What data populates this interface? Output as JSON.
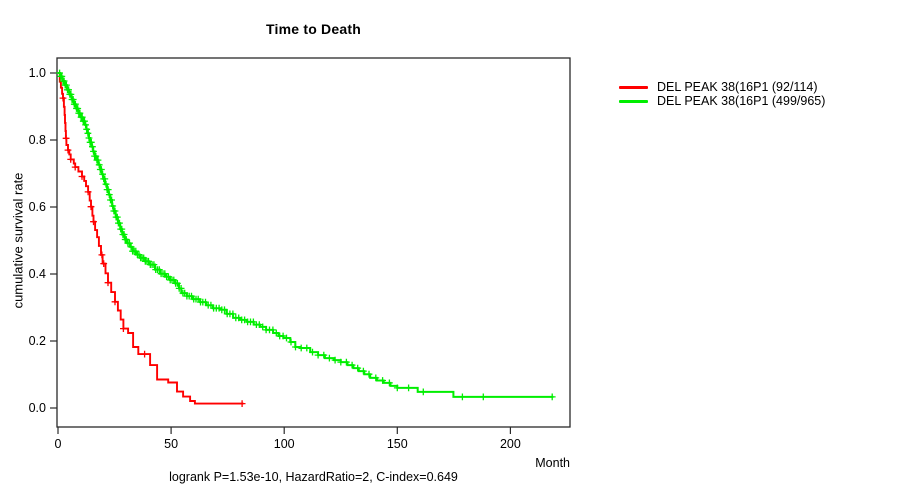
{
  "title": "Time to Death",
  "y_axis": {
    "label": "cumulative survival rate",
    "tick_labels": [
      "0.0",
      "0.2",
      "0.4",
      "0.6",
      "0.8",
      "1.0"
    ]
  },
  "x_axis": {
    "label": "Month",
    "tick_labels": [
      "0",
      "50",
      "100",
      "150",
      "200"
    ]
  },
  "footnote": "logrank P=1.53e-10, HazardRatio=2, C-index=0.649",
  "legend": [
    {
      "label": "DEL PEAK 38(16P1 (92/114)",
      "color": "#ff0000"
    },
    {
      "label": "DEL PEAK 38(16P1 (499/965)",
      "color": "#00ee00"
    }
  ],
  "chart_data": {
    "type": "line",
    "subtype": "kaplan-meier-step",
    "title": "Time to Death",
    "xlabel": "Month",
    "ylabel": "cumulative survival rate",
    "xlim": [
      0,
      226
    ],
    "ylim": [
      0.0,
      1.0
    ],
    "x_ticks": [
      0,
      50,
      100,
      150,
      200
    ],
    "y_ticks": [
      0.0,
      0.2,
      0.4,
      0.6,
      0.8,
      1.0
    ],
    "grid": false,
    "legend_position": "right-outside",
    "annotation": "logrank P=1.53e-10, HazardRatio=2, C-index=0.649",
    "series": [
      {
        "name": "DEL PEAK 38(16P1 (92/114)",
        "color": "#ff0000",
        "line_width": 1.9,
        "end_time": 82,
        "steps": [
          [
            0,
            1.0
          ],
          [
            0.8,
            0.974
          ],
          [
            1.3,
            0.956
          ],
          [
            1.8,
            0.938
          ],
          [
            2.2,
            0.925
          ],
          [
            2.6,
            0.899
          ],
          [
            2.9,
            0.875
          ],
          [
            3.1,
            0.851
          ],
          [
            3.3,
            0.827
          ],
          [
            3.5,
            0.805
          ],
          [
            3.7,
            0.785
          ],
          [
            4.4,
            0.77
          ],
          [
            5,
            0.757
          ],
          [
            5.6,
            0.742
          ],
          [
            7,
            0.73
          ],
          [
            7.6,
            0.719
          ],
          [
            9,
            0.706
          ],
          [
            10.6,
            0.691
          ],
          [
            11.6,
            0.678
          ],
          [
            12.4,
            0.662
          ],
          [
            13.3,
            0.645
          ],
          [
            14,
            0.619
          ],
          [
            14.6,
            0.601
          ],
          [
            15.2,
            0.574
          ],
          [
            15.7,
            0.556
          ],
          [
            16.4,
            0.531
          ],
          [
            17.3,
            0.51
          ],
          [
            18.1,
            0.484
          ],
          [
            19,
            0.457
          ],
          [
            19.7,
            0.431
          ],
          [
            21,
            0.402
          ],
          [
            22.1,
            0.374
          ],
          [
            23.5,
            0.346
          ],
          [
            25.2,
            0.317
          ],
          [
            26.5,
            0.291
          ],
          [
            27.7,
            0.264
          ],
          [
            28.9,
            0.237
          ],
          [
            31,
            0.224
          ],
          [
            33.2,
            0.182
          ],
          [
            35.5,
            0.161
          ],
          [
            40.7,
            0.128
          ],
          [
            43.8,
            0.085
          ],
          [
            48.7,
            0.076
          ],
          [
            52.6,
            0.049
          ],
          [
            55.3,
            0.034
          ],
          [
            58.4,
            0.021
          ],
          [
            60.5,
            0.013
          ]
        ],
        "censor_times": [
          2.2,
          3.6,
          4.4,
          5.6,
          7.6,
          10.6,
          13.3,
          14.6,
          15.7,
          19.4,
          20.2,
          22.1,
          25.2,
          28.9,
          38.3,
          81.4
        ]
      },
      {
        "name": "DEL PEAK 38(16P1 (499/965)",
        "color": "#00ee00",
        "line_width": 2,
        "end_time": 219,
        "steps": [
          [
            0,
            1.0
          ],
          [
            1,
            0.99
          ],
          [
            2,
            0.976
          ],
          [
            3,
            0.964
          ],
          [
            4,
            0.95
          ],
          [
            5,
            0.936
          ],
          [
            6,
            0.921
          ],
          [
            7,
            0.907
          ],
          [
            8,
            0.894
          ],
          [
            9,
            0.88
          ],
          [
            10,
            0.868
          ],
          [
            11,
            0.856
          ],
          [
            12,
            0.845
          ],
          [
            12.6,
            0.832
          ],
          [
            13.2,
            0.82
          ],
          [
            13.7,
            0.806
          ],
          [
            14.2,
            0.793
          ],
          [
            14.8,
            0.78
          ],
          [
            15.5,
            0.766
          ],
          [
            16.2,
            0.752
          ],
          [
            17,
            0.74
          ],
          [
            17.8,
            0.726
          ],
          [
            18.6,
            0.712
          ],
          [
            19.3,
            0.698
          ],
          [
            20,
            0.684
          ],
          [
            20.8,
            0.668
          ],
          [
            21.7,
            0.652
          ],
          [
            22.4,
            0.637
          ],
          [
            23.1,
            0.621
          ],
          [
            23.9,
            0.603
          ],
          [
            24.6,
            0.588
          ],
          [
            25.5,
            0.57
          ],
          [
            26.5,
            0.552
          ],
          [
            27.5,
            0.534
          ],
          [
            28.4,
            0.518
          ],
          [
            29.5,
            0.503
          ],
          [
            30.7,
            0.492
          ],
          [
            31.9,
            0.481
          ],
          [
            33,
            0.468
          ],
          [
            34.5,
            0.458
          ],
          [
            36.2,
            0.448
          ],
          [
            38.5,
            0.438
          ],
          [
            40.3,
            0.428
          ],
          [
            42.9,
            0.413
          ],
          [
            45.1,
            0.401
          ],
          [
            47.3,
            0.392
          ],
          [
            49.5,
            0.382
          ],
          [
            51.8,
            0.372
          ],
          [
            53.5,
            0.357
          ],
          [
            54.5,
            0.343
          ],
          [
            57,
            0.334
          ],
          [
            59.5,
            0.325
          ],
          [
            62.8,
            0.316
          ],
          [
            65.5,
            0.307
          ],
          [
            68.5,
            0.298
          ],
          [
            71.7,
            0.293
          ],
          [
            74.5,
            0.281
          ],
          [
            77.4,
            0.269
          ],
          [
            80.5,
            0.263
          ],
          [
            83.6,
            0.257
          ],
          [
            86.5,
            0.249
          ],
          [
            89.4,
            0.242
          ],
          [
            92,
            0.233
          ],
          [
            95.1,
            0.224
          ],
          [
            97.5,
            0.215
          ],
          [
            99.6,
            0.209
          ],
          [
            102.7,
            0.197
          ],
          [
            104.9,
            0.182
          ],
          [
            107,
            0.179
          ],
          [
            111.5,
            0.167
          ],
          [
            115,
            0.158
          ],
          [
            118,
            0.149
          ],
          [
            122,
            0.143
          ],
          [
            125,
            0.137
          ],
          [
            128,
            0.128
          ],
          [
            130.6,
            0.119
          ],
          [
            133,
            0.11
          ],
          [
            135.4,
            0.101
          ],
          [
            138,
            0.09
          ],
          [
            141,
            0.082
          ],
          [
            144,
            0.075
          ],
          [
            147,
            0.066
          ],
          [
            150,
            0.06
          ],
          [
            159,
            0.048
          ],
          [
            174.8,
            0.033
          ]
        ],
        "censor_times": [
          0.7,
          1.2,
          1.7,
          2.2,
          2.7,
          3.2,
          3.7,
          4.2,
          4.7,
          5.2,
          5.7,
          6.2,
          6.7,
          7.2,
          7.7,
          8.2,
          8.7,
          9.2,
          9.7,
          10.2,
          10.7,
          11.2,
          11.7,
          12.2,
          12.7,
          13.2,
          13.7,
          14.2,
          14.7,
          15.2,
          15.7,
          16.2,
          16.7,
          17.2,
          17.7,
          18.2,
          18.7,
          19.2,
          19.7,
          20.2,
          20.7,
          21.2,
          21.7,
          22.2,
          22.7,
          23.2,
          23.7,
          24.2,
          24.7,
          25.2,
          25.7,
          26.2,
          26.7,
          27.2,
          27.7,
          28.2,
          28.7,
          29.2,
          29.7,
          30.2,
          30.9,
          31.6,
          32.3,
          33,
          33.7,
          34.4,
          35.1,
          35.8,
          36.5,
          37.2,
          37.9,
          38.6,
          39.3,
          40,
          40.8,
          41.6,
          42.4,
          43.2,
          44,
          44.8,
          45.6,
          46.4,
          47.2,
          48,
          48.8,
          49.6,
          50.4,
          51.2,
          52,
          52.8,
          53.6,
          54.4,
          55.2,
          56,
          57,
          58,
          59,
          60,
          61,
          62,
          63,
          64,
          65.2,
          66.4,
          67.6,
          68.8,
          70,
          71.2,
          72.4,
          73.6,
          74.8,
          76,
          77.3,
          78.6,
          79.9,
          81.2,
          82.5,
          83.8,
          85.1,
          86.4,
          87.7,
          89,
          90.5,
          92,
          93.5,
          95,
          96.5,
          98,
          99.5,
          101,
          103,
          105,
          107.5,
          110,
          112.5,
          115,
          117.5,
          120,
          122.5,
          125,
          127.5,
          130,
          132.5,
          135,
          137.5,
          140.5,
          143.5,
          146.5,
          150,
          155,
          161.5,
          178.8,
          188,
          218.5
        ]
      }
    ]
  }
}
